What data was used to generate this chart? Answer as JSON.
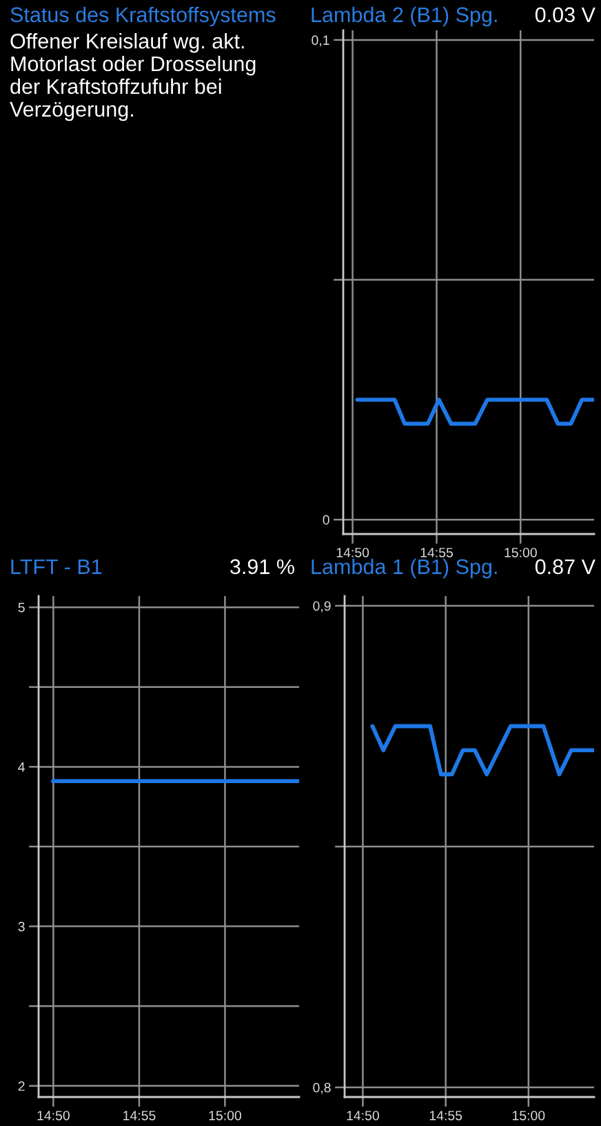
{
  "chart_data": [
    {
      "type": "other",
      "title": "Status des Kraftstoffsystems",
      "annotations": [
        "Offener Kreislauf wg. akt. Motorlast oder Drosselung der Kraftstoffzufuhr bei Verzögerung."
      ]
    },
    {
      "type": "line",
      "title": "Lambda 2 (B1) Spg.",
      "subtitle": "0.03 V",
      "x": [
        14.838,
        14.875,
        14.885,
        14.908,
        14.919,
        14.931,
        14.955,
        14.967,
        15.026,
        15.037,
        15.05,
        15.061,
        15.072
      ],
      "values": [
        0.025,
        0.025,
        0.02,
        0.02,
        0.025,
        0.02,
        0.02,
        0.025,
        0.025,
        0.02,
        0.02,
        0.025,
        0.025
      ],
      "color": "#1e78e6",
      "xlim": [
        14.824,
        15.073
      ],
      "ylim": [
        -0.003,
        0.102
      ],
      "xticks": [
        {
          "value": 14.8333,
          "label": "14:50"
        },
        {
          "value": 14.9167,
          "label": "14:55"
        },
        {
          "value": 15,
          "label": "15:00"
        }
      ],
      "yticks": [
        0,
        {
          "value": 0.05,
          "label": null
        },
        {
          "value": 0.1,
          "label": "0,1"
        }
      ],
      "grid": true
    },
    {
      "type": "line",
      "title": "LTFT - B1",
      "subtitle": "3.91 %",
      "x": [
        14.833,
        15.071
      ],
      "values": [
        3.91,
        3.91
      ],
      "color": "#1e78e6",
      "xlim": [
        14.819,
        15.072
      ],
      "ylim": [
        1.93,
        5.07
      ],
      "xticks": [
        {
          "value": 14.8333,
          "label": "14:50"
        },
        {
          "value": 14.9167,
          "label": "14:55"
        },
        {
          "value": 15,
          "label": "15:00"
        }
      ],
      "yticks": [
        2,
        {
          "value": 2.5,
          "label": null
        },
        3,
        {
          "value": 3.5,
          "label": null
        },
        4,
        {
          "value": 4.5,
          "label": null
        },
        5
      ],
      "grid": true
    },
    {
      "type": "line",
      "title": "Lambda 1 (B1) Spg.",
      "subtitle": "0.87 V",
      "x": [
        14.843,
        14.854,
        14.866,
        14.901,
        14.912,
        14.923,
        14.934,
        14.946,
        14.958,
        14.982,
        15.015,
        15.031,
        15.043,
        15.065
      ],
      "values": [
        0.875,
        0.87,
        0.875,
        0.875,
        0.865,
        0.865,
        0.87,
        0.87,
        0.865,
        0.875,
        0.875,
        0.865,
        0.87,
        0.87
      ],
      "color": "#1e78e6",
      "xlim": [
        14.815,
        15.066
      ],
      "ylim": [
        0.798,
        0.902
      ],
      "xticks": [
        {
          "value": 14.8333,
          "label": "14:50"
        },
        {
          "value": 14.9167,
          "label": "14:55"
        },
        {
          "value": 15,
          "label": "15:00"
        }
      ],
      "yticks": [
        {
          "value": 0.8,
          "label": "0,8"
        },
        {
          "value": 0.85,
          "label": null
        },
        {
          "value": 0.9,
          "label": "0,9"
        }
      ],
      "grid": true
    }
  ]
}
